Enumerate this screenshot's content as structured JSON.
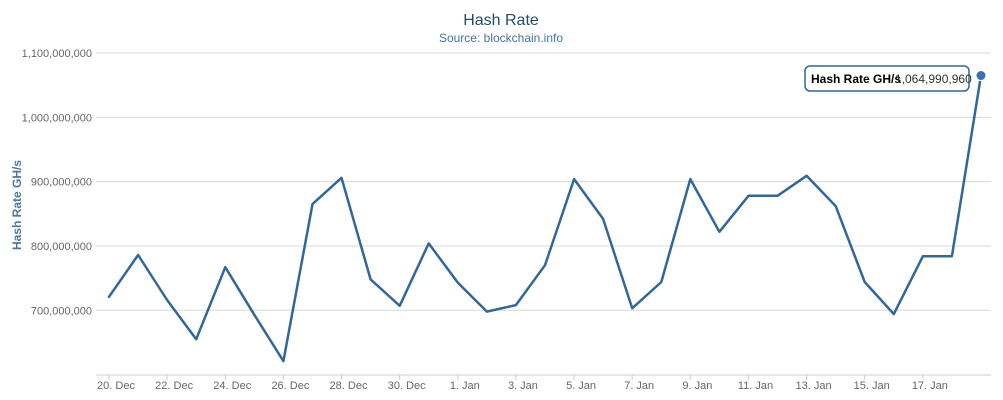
{
  "chart_data": {
    "type": "line",
    "title": "Hash Rate",
    "subtitle": "Source: blockchain.info",
    "xlabel": "",
    "ylabel": "Hash Rate GH/s",
    "ylim": [
      600000000,
      1100000000
    ],
    "y_ticks": [
      700000000,
      800000000,
      900000000,
      1000000000,
      1100000000
    ],
    "y_tick_labels": [
      "700,000,000",
      "800,000,000",
      "900,000,000",
      "1,000,000,000",
      "1,100,000,000"
    ],
    "x_ticks": [
      "2013-12-20",
      "2013-12-22",
      "2013-12-24",
      "2013-12-26",
      "2013-12-28",
      "2013-12-30",
      "2014-01-01",
      "2014-01-03",
      "2014-01-05",
      "2014-01-07",
      "2014-01-09",
      "2014-01-11",
      "2014-01-13",
      "2014-01-15",
      "2014-01-17"
    ],
    "x_tick_labels": [
      "20. Dec",
      "22. Dec",
      "24. Dec",
      "26. Dec",
      "28. Dec",
      "30. Dec",
      "1. Jan",
      "3. Jan",
      "5. Jan",
      "7. Jan",
      "9. Jan",
      "11. Jan",
      "13. Jan",
      "15. Jan",
      "17. Jan"
    ],
    "grid": "horizontal",
    "legend": "none",
    "color": "#336699",
    "series": [
      {
        "name": "Hash Rate GH/s",
        "x": [
          "2013-12-20",
          "2013-12-21",
          "2013-12-22",
          "2013-12-23",
          "2013-12-24",
          "2013-12-25",
          "2013-12-26",
          "2013-12-27",
          "2013-12-28",
          "2013-12-29",
          "2013-12-30",
          "2013-12-31",
          "2014-01-01",
          "2014-01-02",
          "2014-01-03",
          "2014-01-04",
          "2014-01-05",
          "2014-01-06",
          "2014-01-07",
          "2014-01-08",
          "2014-01-09",
          "2014-01-10",
          "2014-01-11",
          "2014-01-12",
          "2014-01-13",
          "2014-01-14",
          "2014-01-15",
          "2014-01-16",
          "2014-01-17",
          "2014-01-18",
          "2014-01-19"
        ],
        "values": [
          721000000,
          786000000,
          716000000,
          655000000,
          767000000,
          693000000,
          621000000,
          865000000,
          906000000,
          748000000,
          707000000,
          804000000,
          743000000,
          698000000,
          708000000,
          770000000,
          904000000,
          842000000,
          703000000,
          744000000,
          904000000,
          822000000,
          878000000,
          878000000,
          909000000,
          862000000,
          744000000,
          694000000,
          784000000,
          784000000,
          1064990960
        ]
      }
    ],
    "tooltip": {
      "label": "Hash Rate GH/s",
      "value": "1,064,990,960"
    }
  }
}
